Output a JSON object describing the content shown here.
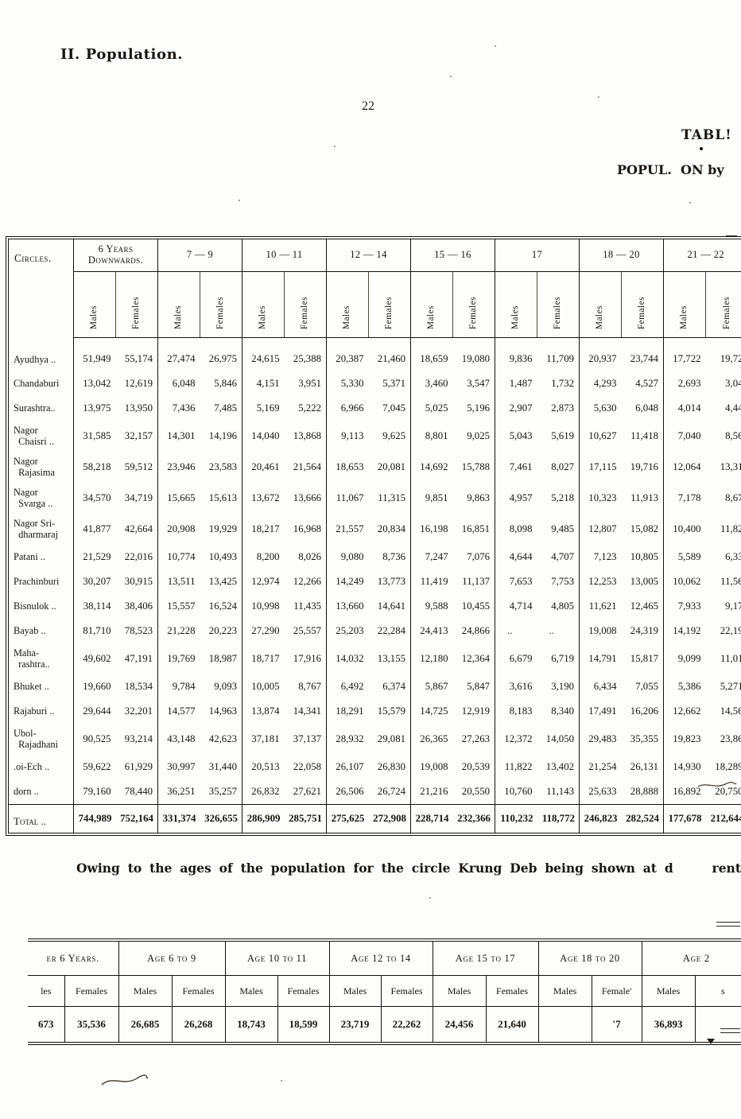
{
  "page": {
    "section_title": "II. Population.",
    "page_number": "22",
    "fragments": {
      "table_label": "TABL!",
      "popul_left": "POPUL.",
      "popul_right": "ON by"
    },
    "paragraph": {
      "left": "Owing to the ages of the population for the circle Krung Deb being shown at d",
      "right": "rent"
    }
  },
  "main_table": {
    "circles_header": "Circles.",
    "col_groups": [
      {
        "label": "6 Years\nDownwards."
      },
      {
        "label": "7 — 9"
      },
      {
        "label": "10 — 11"
      },
      {
        "label": "12 — 14"
      },
      {
        "label": "15 — 16"
      },
      {
        "label": "17"
      },
      {
        "label": "18 — 20"
      },
      {
        "label": "21 — 22"
      }
    ],
    "sub_headers": [
      "Males",
      "Females"
    ],
    "rows": [
      {
        "name": "Ayudhya ..",
        "values": [
          "51,949",
          "55,174",
          "27,474",
          "26,975",
          "24,615",
          "25,388",
          "20,387",
          "21,460",
          "18,659",
          "19,080",
          "9,836",
          "11,709",
          "20,937",
          "23,744",
          "17,722",
          "19,72"
        ]
      },
      {
        "name": "Chandaburi",
        "values": [
          "13,042",
          "12,619",
          "6,048",
          "5,846",
          "4,151",
          "3,951",
          "5,330",
          "5,371",
          "3,460",
          "3,547",
          "1,487",
          "1,732",
          "4,293",
          "4,527",
          "2,693",
          "3,04"
        ]
      },
      {
        "name": "Surashtra..",
        "values": [
          "13,975",
          "13,950",
          "7,436",
          "7,485",
          "5,169",
          "5,222",
          "6,966",
          "7,045",
          "5,025",
          "5,196",
          "2,907",
          "2,873",
          "5,630",
          "6,048",
          "4,014",
          "4,44"
        ]
      },
      {
        "name": "Nagor\n  Chaisri ..",
        "values": [
          "31,585",
          "32,157",
          "14,301",
          "14,196",
          "14,040",
          "13,868",
          "9,113",
          "9,625",
          "8,801",
          "9,025",
          "5,043",
          "5,619",
          "10,627",
          "11,418",
          "7,040",
          "8,56"
        ]
      },
      {
        "name": "Nagor\n  Rajasima",
        "values": [
          "58,218",
          "59,512",
          "23,946",
          "23,583",
          "20,461",
          "21,564",
          "18,653",
          "20,081",
          "14,692",
          "15,788",
          "7,461",
          "8,027",
          "17,115",
          "19,716",
          "12,064",
          "13,31"
        ]
      },
      {
        "name": "Nagor\n  Svarga ..",
        "values": [
          "34,570",
          "34,719",
          "15,665",
          "15,613",
          "13,672",
          "13,666",
          "11,067",
          "11,315",
          "9,851",
          "9,863",
          "4,957",
          "5,218",
          "10,323",
          "11,913",
          "7,178",
          "8,67"
        ]
      },
      {
        "name": "Nagor Sri-\n  dharmaraj",
        "values": [
          "41,877",
          "42,664",
          "20,908",
          "19,929",
          "18,217",
          "16,968",
          "21,557",
          "20,834",
          "16,198",
          "16,851",
          "8,098",
          "9,485",
          "12,807",
          "15,082",
          "10,400",
          "11,82"
        ]
      },
      {
        "name": "Patani ..",
        "values": [
          "21,529",
          "22,016",
          "10,774",
          "10,493",
          "8,200",
          "8,026",
          "9,080",
          "8,736",
          "7,247",
          "7,076",
          "4,644",
          "4,707",
          "7,123",
          "10,805",
          "5,589",
          "6,33"
        ]
      },
      {
        "name": "Prachinburi",
        "values": [
          "30,207",
          "30,915",
          "13,511",
          "13,425",
          "12,974",
          "12,266",
          "14,249",
          "13,773",
          "11,419",
          "11,137",
          "7,653",
          "7,753",
          "12,253",
          "13,005",
          "10,062",
          "11,56"
        ]
      },
      {
        "name": "Bisnulok ..",
        "values": [
          "38,114",
          "38,406",
          "15,557",
          "16,524",
          "10,998",
          "11,435",
          "13,660",
          "14,641",
          "9,588",
          "10,455",
          "4,714",
          "4,805",
          "11,621",
          "12,465",
          "7,933",
          "9,17"
        ]
      },
      {
        "name": "Bayab   ..",
        "values": [
          "81,710",
          "78,523",
          "21,228",
          "20,223",
          "27,290",
          "25,557",
          "25,203",
          "22,284",
          "24,413",
          "24,866",
          "..",
          "..",
          "19,008",
          "24,319",
          "14,192",
          "22,19"
        ]
      },
      {
        "name": "Maha-\n  rashtra..",
        "values": [
          "49,602",
          "47,191",
          "19,769",
          "18,987",
          "18,717",
          "17,916",
          "14,032",
          "13,155",
          "12,180",
          "12,364",
          "6,679",
          "6,719",
          "14,791",
          "15,817",
          "9,099",
          "11,01"
        ]
      },
      {
        "name": "Bhuket   ..",
        "values": [
          "19,660",
          "18,534",
          "9,784",
          "9,093",
          "10,005",
          "8,767",
          "6,492",
          "6,374",
          "5,867",
          "5,847",
          "3,616",
          "3,190",
          "6,434",
          "7,055",
          "5,386",
          "5,271"
        ]
      },
      {
        "name": "Rajaburi ..",
        "values": [
          "29,644",
          "32,201",
          "14,577",
          "14,963",
          "13,874",
          "14,341",
          "18,291",
          "15,579",
          "14,725",
          "12,919",
          "8,183",
          "8,340",
          "17,491",
          "16,206",
          "12,662",
          "14,56"
        ]
      },
      {
        "name": "Ubol-\n  Rajadhani",
        "values": [
          "90,525",
          "93,214",
          "43,148",
          "42,623",
          "37,181",
          "37,137",
          "28,932",
          "29,081",
          "26,365",
          "27,263",
          "12,372",
          "14,050",
          "29,483",
          "35,355",
          "19,823",
          "23,86"
        ]
      },
      {
        "name": ".oi-Ech ..",
        "values": [
          "59,622",
          "61,929",
          "30,997",
          "31,440",
          "20,513",
          "22,058",
          "26,107",
          "26,830",
          "19,008",
          "20,539",
          "11,822",
          "13,402",
          "21,254",
          "26,131",
          "14,930",
          "18,289"
        ]
      },
      {
        "name": "dorn   ..",
        "values": [
          "79,160",
          "78,440",
          "36,251",
          "35,257",
          "26,832",
          "27,621",
          "26,506",
          "26,724",
          "21,216",
          "20,550",
          "10,760",
          "11,143",
          "25,633",
          "28,888",
          "16,892",
          "20,750"
        ]
      }
    ],
    "total": {
      "name": "Total ..",
      "values": [
        "744,989",
        "752,164",
        "331,374",
        "326,655",
        "286,909",
        "285,751",
        "275,625",
        "272,908",
        "228,714",
        "232,366",
        "110,232",
        "118,772",
        "246,823",
        "282,524",
        "177,678",
        "212,644"
      ]
    }
  },
  "bottom_table": {
    "groups": [
      {
        "label": "er 6 Years."
      },
      {
        "label": "Age 6 to 9"
      },
      {
        "label": "Age 10 to 11"
      },
      {
        "label": "Age 12 to 14"
      },
      {
        "label": "Age 15 to 17"
      },
      {
        "label": "Age 18 to 20"
      },
      {
        "label": "Age 2"
      }
    ],
    "sub_headers": [
      "les",
      "Females",
      "Males",
      "Females",
      "Males",
      "Females",
      "Males",
      "Females",
      "Males",
      "Females",
      "Males",
      "Female'",
      "Males",
      "s"
    ],
    "values": [
      "673",
      "35,536",
      "26,685",
      "26,268",
      "18,743",
      "18,599",
      "23,719",
      "22,262",
      "24,456",
      "21,640",
      "",
      "'7",
      "36,893",
      ""
    ]
  }
}
